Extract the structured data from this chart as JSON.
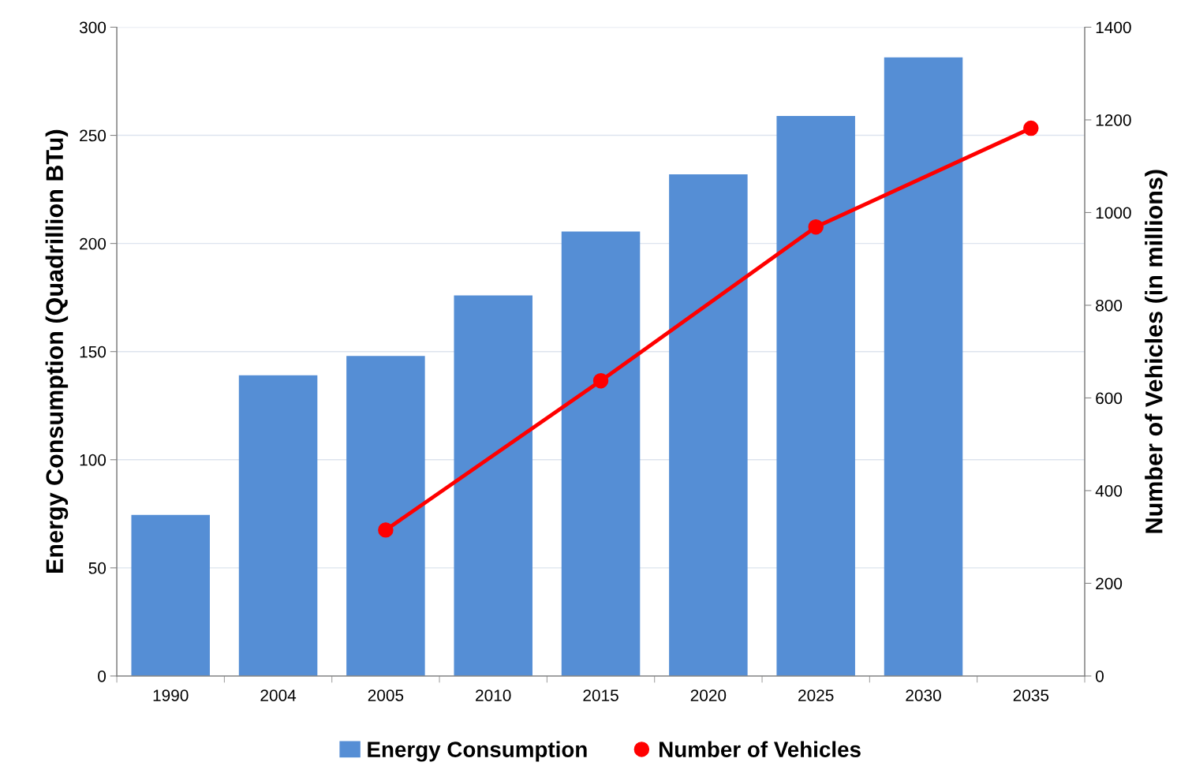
{
  "chart_data": {
    "type": "bar",
    "ylabel": "Energy Consumption (Quadrillion BTu)",
    "y2label": "Number of Vehicles (in millions)",
    "categories": [
      "1990",
      "2004",
      "2005",
      "2010",
      "2015",
      "2020",
      "2025",
      "2030",
      "2035"
    ],
    "series": [
      {
        "name": "Energy Consumption",
        "color": "#558ed5",
        "values": [
          74.5,
          139,
          148,
          176,
          205.5,
          232,
          259,
          286,
          null
        ]
      },
      {
        "name": "Number of Vehicles",
        "type": "line",
        "axis": "y2",
        "color": "#ff0000",
        "marker": "circle",
        "values": [
          null,
          null,
          315,
          null,
          637,
          null,
          969,
          null,
          1182
        ]
      }
    ],
    "ylim": [
      0,
      300
    ],
    "yticks": [
      0,
      50,
      100,
      150,
      200,
      250,
      300
    ],
    "y2lim": [
      0,
      1400
    ],
    "y2ticks": [
      0,
      200,
      400,
      600,
      800,
      1000,
      1200,
      1400
    ],
    "grid": "y",
    "legend": "bottom"
  }
}
